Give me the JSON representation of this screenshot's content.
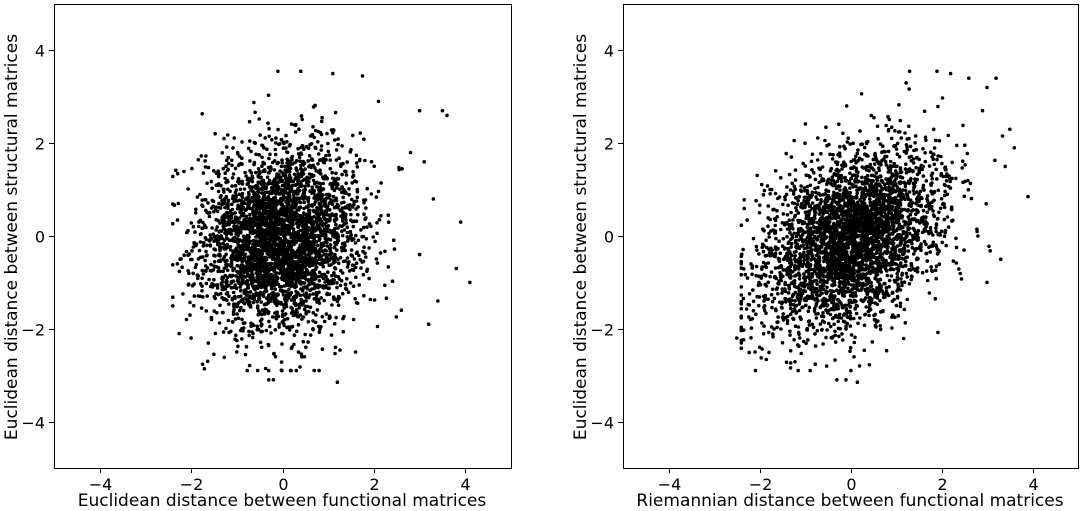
{
  "chart_data": [
    {
      "type": "scatter",
      "title": "",
      "xlabel": "Euclidean distance between functional matrices",
      "ylabel": "Euclidean distance between structural matrices",
      "xlim": [
        -5,
        5
      ],
      "ylim": [
        -5,
        5
      ],
      "xticks": [
        -4,
        -2,
        0,
        2,
        4
      ],
      "yticks": [
        -4,
        -2,
        0,
        2,
        4
      ],
      "xtick_labels": [
        "−4",
        "−2",
        "0",
        "2",
        "4"
      ],
      "ytick_labels": [
        "−4",
        "−2",
        "0",
        "2",
        "4"
      ],
      "grid": false,
      "marker_color": "#000000",
      "cloud": {
        "n": 3600,
        "x_mean": -0.05,
        "x_sd": 0.85,
        "y_mean": -0.05,
        "y_sd": 0.95,
        "correlation": 0.05
      },
      "outliers": [
        {
          "x": -2.3,
          "y": -0.6
        },
        {
          "x": -2.1,
          "y": -1.8
        },
        {
          "x": -2.0,
          "y": -2.2
        },
        {
          "x": 4.1,
          "y": -1.0
        },
        {
          "x": 3.9,
          "y": 0.3
        },
        {
          "x": 3.6,
          "y": 2.6
        },
        {
          "x": 3.5,
          "y": 2.7
        },
        {
          "x": 3.8,
          "y": -0.7
        },
        {
          "x": 3.4,
          "y": -1.4
        },
        {
          "x": -0.3,
          "y": -3.1
        },
        {
          "x": -0.2,
          "y": -3.1
        },
        {
          "x": 1.2,
          "y": -3.15
        },
        {
          "x": 0.8,
          "y": -2.9
        },
        {
          "x": 1.6,
          "y": -2.5
        },
        {
          "x": -0.1,
          "y": 3.55
        },
        {
          "x": 0.4,
          "y": 3.55
        },
        {
          "x": 1.1,
          "y": 3.5
        },
        {
          "x": 1.75,
          "y": 3.45
        },
        {
          "x": 2.1,
          "y": 2.9
        },
        {
          "x": 3.0,
          "y": 2.7
        },
        {
          "x": 3.2,
          "y": -1.9
        },
        {
          "x": 3.1,
          "y": 1.6
        },
        {
          "x": 3.3,
          "y": 0.8
        },
        {
          "x": -1.9,
          "y": 0.5
        },
        {
          "x": -1.95,
          "y": 0.2
        },
        {
          "x": -1.8,
          "y": -1.3
        },
        {
          "x": 2.8,
          "y": 1.8
        },
        {
          "x": 2.6,
          "y": -1.6
        },
        {
          "x": 3.0,
          "y": -0.4
        },
        {
          "x": -1.5,
          "y": -2.55
        }
      ]
    },
    {
      "type": "scatter",
      "title": "",
      "xlabel": "Riemannian distance between functional matrices",
      "ylabel": "Euclidean distance between structural matrices",
      "xlim": [
        -5,
        5
      ],
      "ylim": [
        -5,
        5
      ],
      "xticks": [
        -4,
        -2,
        0,
        2,
        4
      ],
      "yticks": [
        -4,
        -2,
        0,
        2,
        4
      ],
      "xtick_labels": [
        "−4",
        "−2",
        "0",
        "2",
        "4"
      ],
      "ytick_labels": [
        "−4",
        "−2",
        "0",
        "2",
        "4"
      ],
      "grid": false,
      "marker_color": "#000000",
      "cloud": {
        "n": 3600,
        "x_mean": 0.0,
        "x_sd": 0.95,
        "y_mean": -0.05,
        "y_sd": 0.95,
        "correlation": 0.35
      },
      "outliers": [
        {
          "x": -2.5,
          "y": -2.2
        },
        {
          "x": -2.4,
          "y": -0.6
        },
        {
          "x": -2.2,
          "y": -1.8
        },
        {
          "x": -2.1,
          "y": -2.5
        },
        {
          "x": 3.9,
          "y": 0.85
        },
        {
          "x": 3.5,
          "y": 2.3
        },
        {
          "x": 3.2,
          "y": 3.4
        },
        {
          "x": 3.0,
          "y": 3.2
        },
        {
          "x": 2.6,
          "y": 3.4
        },
        {
          "x": 2.2,
          "y": 3.5
        },
        {
          "x": 1.9,
          "y": 3.55
        },
        {
          "x": 1.3,
          "y": 3.55
        },
        {
          "x": -0.3,
          "y": -3.1
        },
        {
          "x": -0.1,
          "y": -3.1
        },
        {
          "x": 0.15,
          "y": -3.15
        },
        {
          "x": 3.3,
          "y": -0.5
        },
        {
          "x": 3.0,
          "y": -1.0
        },
        {
          "x": 3.4,
          "y": 1.5
        },
        {
          "x": -2.0,
          "y": 0.5
        },
        {
          "x": -1.9,
          "y": -1.4
        },
        {
          "x": 0.2,
          "y": -2.8
        },
        {
          "x": 2.8,
          "y": 0.0
        },
        {
          "x": 3.6,
          "y": 1.9
        },
        {
          "x": -1.3,
          "y": 1.7
        },
        {
          "x": -1.0,
          "y": 2.0
        },
        {
          "x": 2.9,
          "y": 2.7
        }
      ]
    }
  ]
}
